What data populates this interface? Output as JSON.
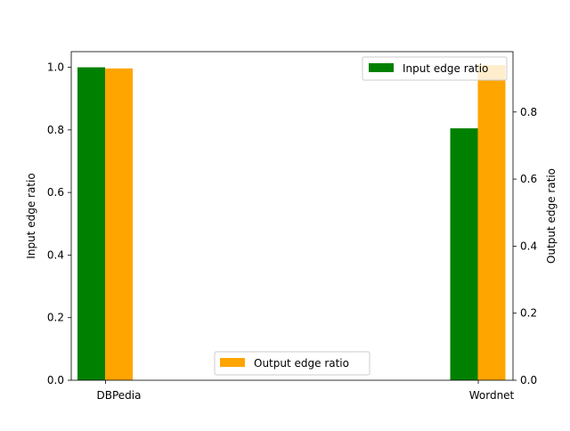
{
  "chart_data": {
    "type": "bar",
    "categories": [
      "DBPedia",
      "Wordnet"
    ],
    "series": [
      {
        "name": "Input edge ratio",
        "axis": "left",
        "color": "#008000",
        "values": [
          1.0,
          0.805
        ]
      },
      {
        "name": "Output edge ratio",
        "axis": "right",
        "color": "#FFA500",
        "values": [
          0.93,
          0.94
        ]
      }
    ],
    "left_axis": {
      "label": "Input edge ratio",
      "ylim": [
        0,
        1.05
      ],
      "ticks": [
        "0.0",
        "0.2",
        "0.4",
        "0.6",
        "0.8",
        "1.0"
      ]
    },
    "right_axis": {
      "label": "Output edge ratio",
      "ylim": [
        0,
        0.98
      ],
      "ticks": [
        "0.0",
        "0.2",
        "0.4",
        "0.6",
        "0.8"
      ]
    },
    "grid": false,
    "legends": [
      {
        "series": "Input edge ratio",
        "placement": "upper right"
      },
      {
        "series": "Output edge ratio",
        "placement": "lower center"
      }
    ]
  }
}
